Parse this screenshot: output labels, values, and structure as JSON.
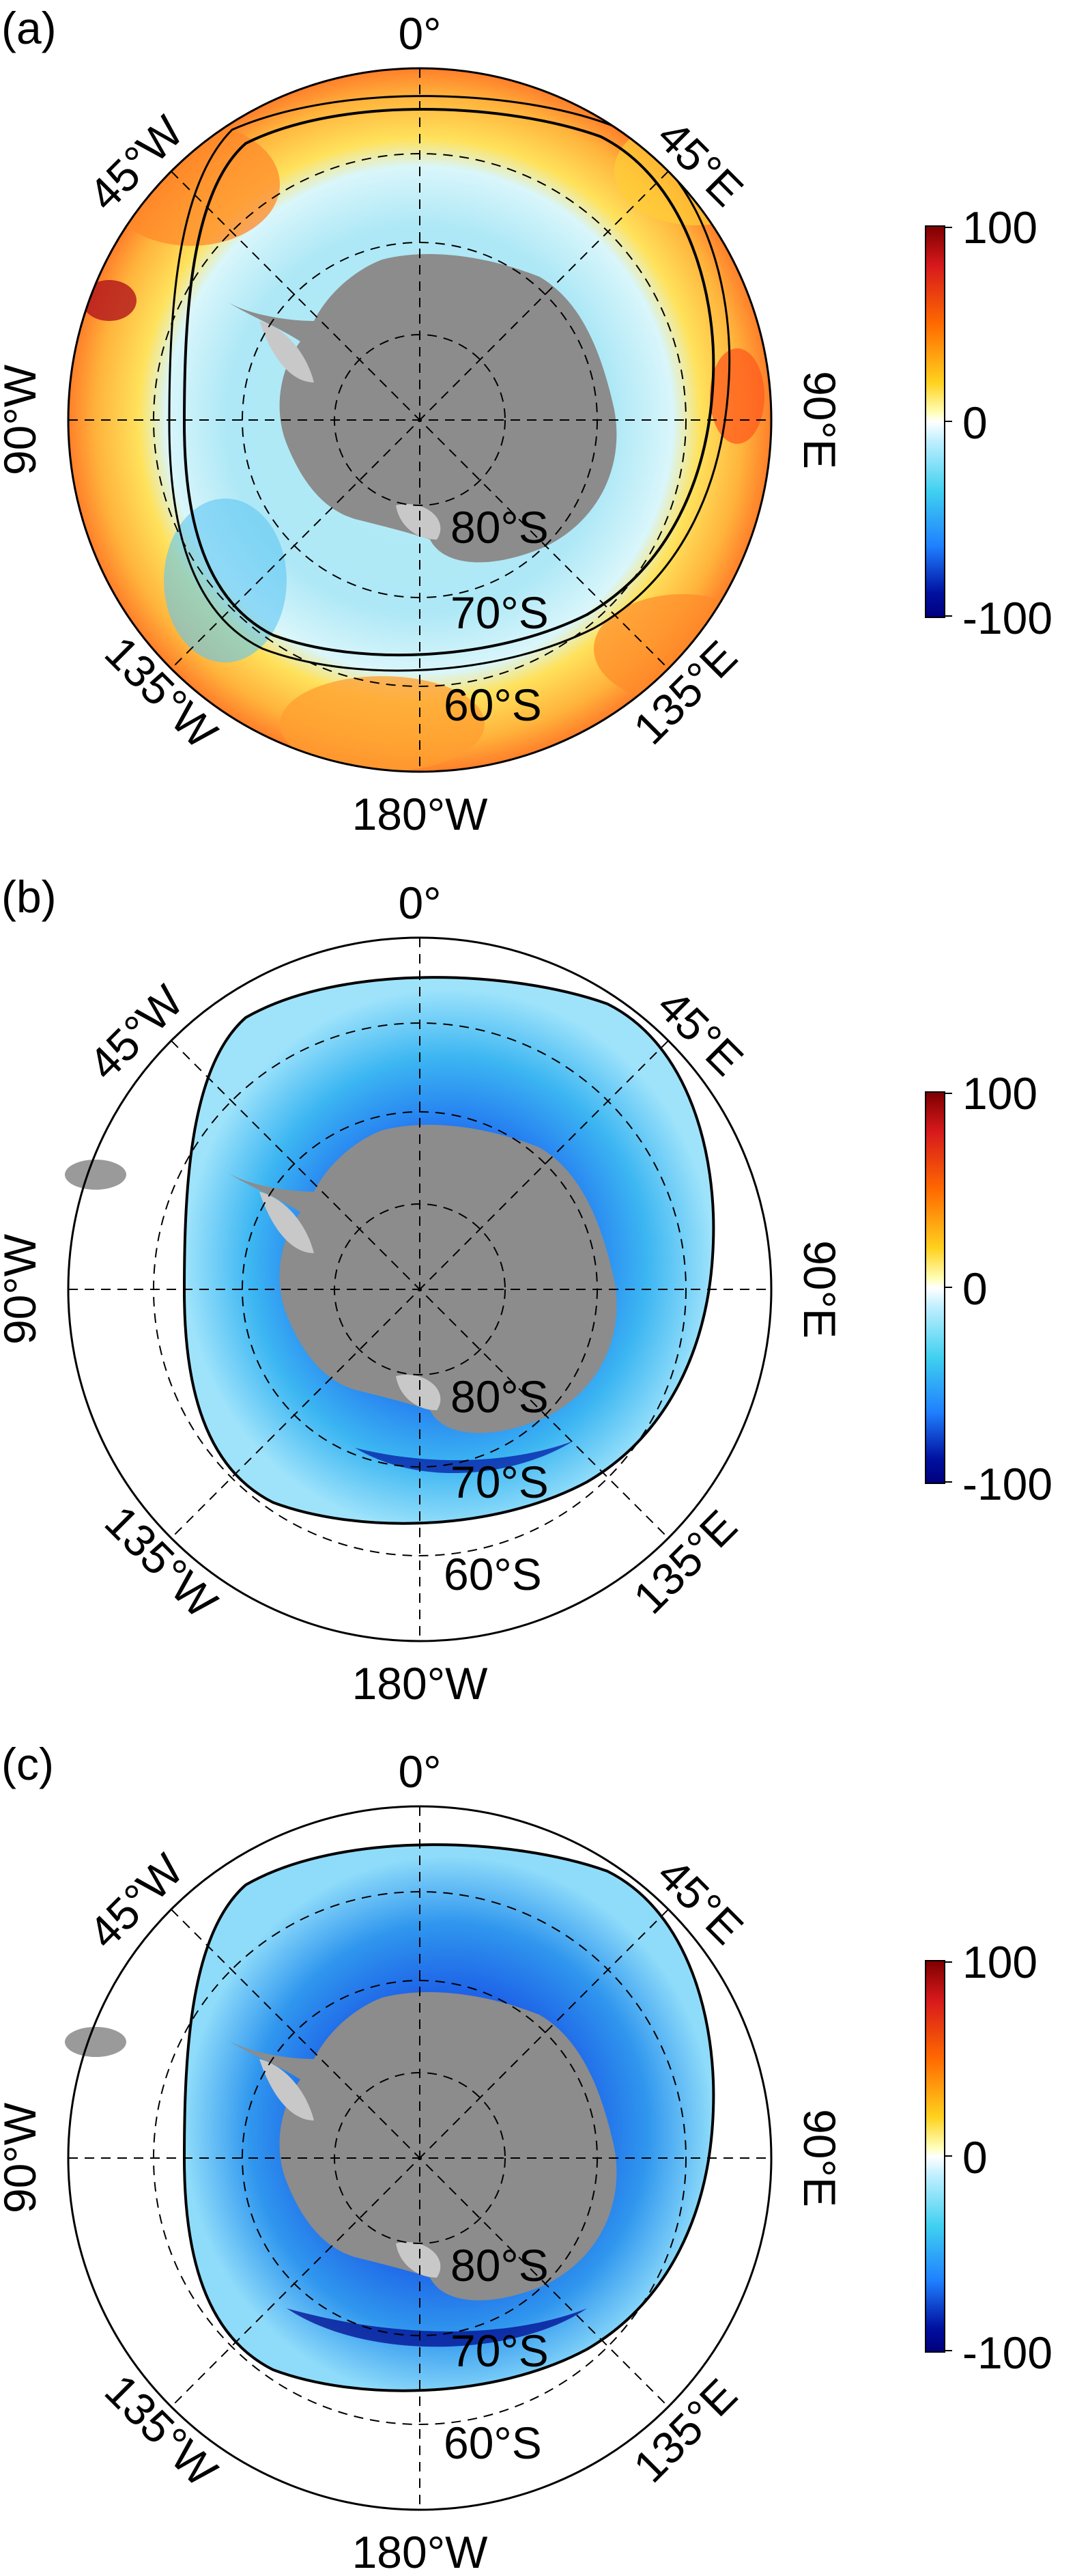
{
  "panels": [
    {
      "label": "(a)"
    },
    {
      "label": "(b)"
    },
    {
      "label": "(c)"
    }
  ],
  "map": {
    "lon_labels": {
      "top": "0°",
      "nw": "45°W",
      "ne": "45°E",
      "w": "90°W",
      "e": "90°E",
      "sw": "135°W",
      "se": "135°E",
      "bottom": "180°W"
    },
    "lat_labels": [
      "80°S",
      "70°S",
      "60°S"
    ]
  },
  "colorbar": {
    "max_label": "100",
    "mid_label": "0",
    "min_label": "-100",
    "colormap": [
      "#7f0000",
      "#d7191c",
      "#ff6a00",
      "#ffd21f",
      "#ffffff",
      "#3fd0f0",
      "#1f7fff",
      "#0010a0",
      "#00007f"
    ]
  },
  "colors": {
    "land": "#8c8c8c",
    "ice_shelf": "#c8c8c8",
    "contour": "#000000"
  }
}
